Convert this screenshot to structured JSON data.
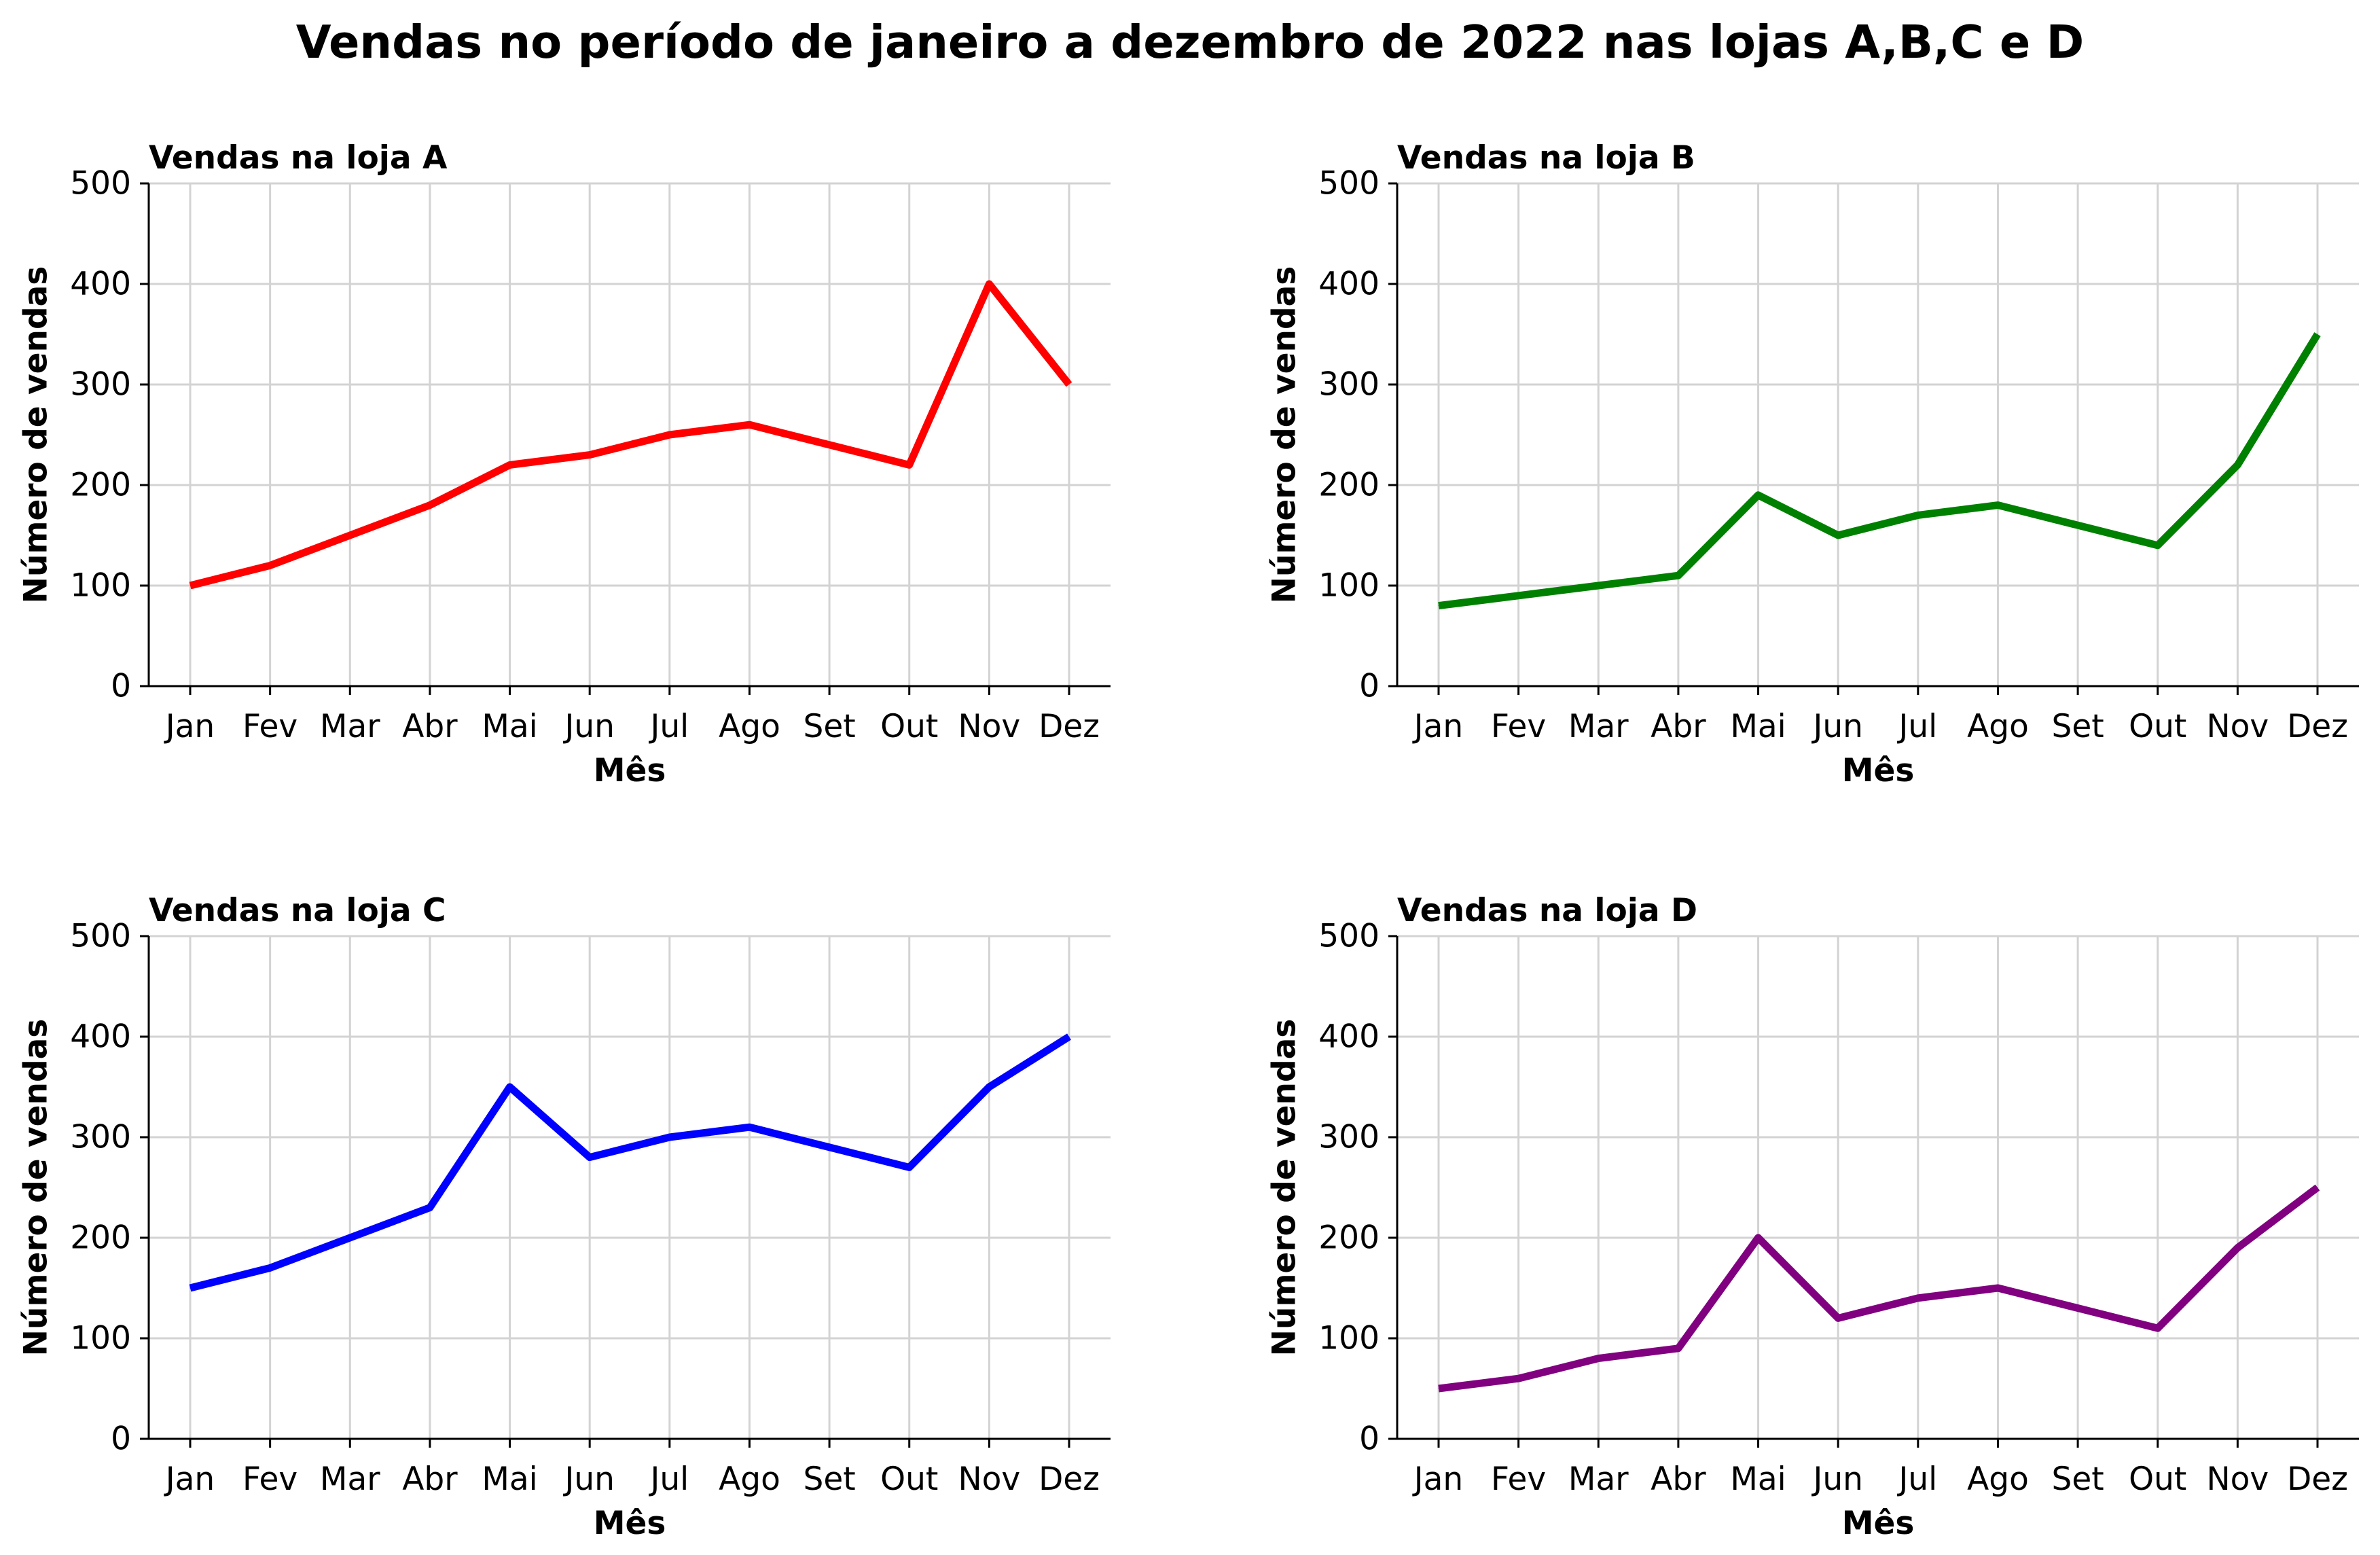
{
  "title": "Vendas no período de janeiro a dezembro de 2022 nas lojas A,B,C e D",
  "chart_data": [
    {
      "type": "line",
      "title": "Vendas na loja A",
      "xlabel": "Mês",
      "ylabel": "Número de vendas",
      "categories": [
        "Jan",
        "Fev",
        "Mar",
        "Abr",
        "Mai",
        "Jun",
        "Jul",
        "Ago",
        "Set",
        "Out",
        "Nov",
        "Dez"
      ],
      "ylim": [
        0,
        500
      ],
      "yticks": [
        0,
        100,
        200,
        300,
        400,
        500
      ],
      "grid": true,
      "series": [
        {
          "color": "#ff0000",
          "values": [
            100,
            120,
            150,
            180,
            220,
            230,
            250,
            260,
            240,
            220,
            400,
            300
          ]
        }
      ]
    },
    {
      "type": "line",
      "title": "Vendas na loja B",
      "xlabel": "Mês",
      "ylabel": "Número de vendas",
      "categories": [
        "Jan",
        "Fev",
        "Mar",
        "Abr",
        "Mai",
        "Jun",
        "Jul",
        "Ago",
        "Set",
        "Out",
        "Nov",
        "Dez"
      ],
      "ylim": [
        0,
        500
      ],
      "yticks": [
        0,
        100,
        200,
        300,
        400,
        500
      ],
      "grid": true,
      "series": [
        {
          "color": "#008000",
          "values": [
            80,
            90,
            100,
            110,
            190,
            150,
            170,
            180,
            160,
            140,
            220,
            350
          ]
        }
      ]
    },
    {
      "type": "line",
      "title": "Vendas na loja C",
      "xlabel": "Mês",
      "ylabel": "Número de vendas",
      "categories": [
        "Jan",
        "Fev",
        "Mar",
        "Abr",
        "Mai",
        "Jun",
        "Jul",
        "Ago",
        "Set",
        "Out",
        "Nov",
        "Dez"
      ],
      "ylim": [
        0,
        500
      ],
      "yticks": [
        0,
        100,
        200,
        300,
        400,
        500
      ],
      "grid": true,
      "series": [
        {
          "color": "#0000ff",
          "values": [
            150,
            170,
            200,
            230,
            350,
            280,
            300,
            310,
            290,
            270,
            350,
            400
          ]
        }
      ]
    },
    {
      "type": "line",
      "title": "Vendas na loja D",
      "xlabel": "Mês",
      "ylabel": "Número de vendas",
      "categories": [
        "Jan",
        "Fev",
        "Mar",
        "Abr",
        "Mai",
        "Jun",
        "Jul",
        "Ago",
        "Set",
        "Out",
        "Nov",
        "Dez"
      ],
      "ylim": [
        0,
        500
      ],
      "yticks": [
        0,
        100,
        200,
        300,
        400,
        500
      ],
      "grid": true,
      "series": [
        {
          "color": "#800080",
          "values": [
            50,
            60,
            80,
            90,
            200,
            120,
            140,
            150,
            130,
            110,
            190,
            250
          ]
        }
      ]
    }
  ]
}
